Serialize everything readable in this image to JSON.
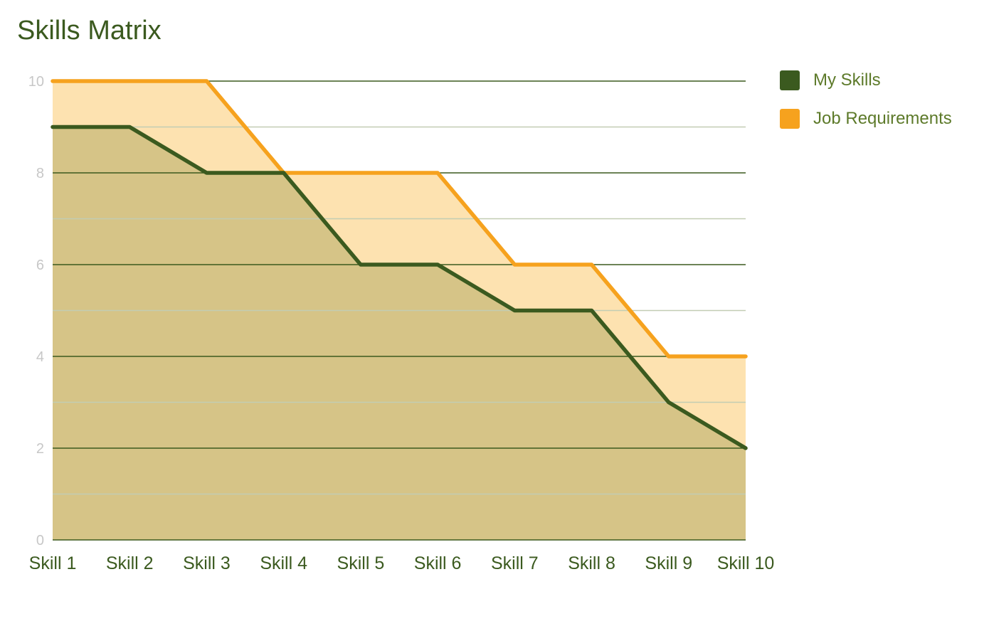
{
  "title": "Skills Matrix",
  "colors": {
    "my_skills_line": "#3b5a1f",
    "my_skills_fill": "#d6c487",
    "job_line": "#f6a21e",
    "job_fill": "#fde2b0",
    "gridline_major": "#3b5a1f",
    "gridline_minor": "#c2cdb3",
    "title": "#3b5a1f",
    "legend_text": "#5d7a2a",
    "y_tick": "#c7c7c7",
    "x_tick": "#3b5a1f"
  },
  "chart_data": {
    "type": "area",
    "title": "Skills Matrix",
    "xlabel": "",
    "ylabel": "",
    "categories": [
      "Skill 1",
      "Skill 2",
      "Skill 3",
      "Skill 4",
      "Skill 5",
      "Skill 6",
      "Skill 7",
      "Skill 8",
      "Skill 9",
      "Skill 10"
    ],
    "series": [
      {
        "name": "My Skills",
        "values": [
          9,
          9,
          8,
          8,
          6,
          6,
          5,
          5,
          3,
          2
        ]
      },
      {
        "name": "Job Requirements",
        "values": [
          10,
          10,
          10,
          8,
          8,
          8,
          6,
          6,
          4,
          4
        ]
      }
    ],
    "ylim": [
      0,
      10
    ],
    "yticks": [
      "0",
      "2",
      "4",
      "6",
      "8",
      "10"
    ],
    "minor_gridlines": [
      1,
      3,
      5,
      7,
      9
    ],
    "grid": true,
    "legend_position": "right"
  }
}
